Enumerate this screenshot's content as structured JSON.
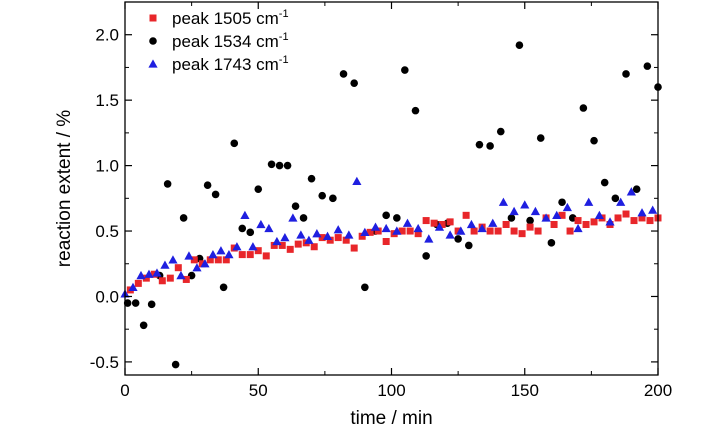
{
  "chart_data": {
    "type": "scatter",
    "xlabel": "time / min",
    "ylabel": "reaction extent / %",
    "xlim": [
      0,
      200
    ],
    "ylim": [
      -0.6,
      2.25
    ],
    "x_ticks": [
      0,
      50,
      100,
      150,
      200
    ],
    "y_ticks": [
      -0.5,
      0.0,
      0.5,
      1.0,
      1.5,
      2.0
    ],
    "x_tick_labels": [
      "0",
      "50",
      "100",
      "150",
      "200"
    ],
    "y_tick_labels": [
      "-0.5",
      "0.0",
      "0.5",
      "1.0",
      "1.5",
      "2.0"
    ],
    "grid": false,
    "legend_position": "top-left",
    "series": [
      {
        "name": "peak 1505 cm-1",
        "label_main": "peak 1505 cm",
        "label_sup": "-1",
        "marker": "square",
        "color": "#e8262a",
        "points": [
          [
            2,
            0.05
          ],
          [
            5,
            0.1
          ],
          [
            8,
            0.14
          ],
          [
            11,
            0.17
          ],
          [
            14,
            0.12
          ],
          [
            17,
            0.14
          ],
          [
            20,
            0.22
          ],
          [
            23,
            0.13
          ],
          [
            26,
            0.28
          ],
          [
            29,
            0.25
          ],
          [
            32,
            0.28
          ],
          [
            35,
            0.28
          ],
          [
            38,
            0.28
          ],
          [
            41,
            0.37
          ],
          [
            44,
            0.32
          ],
          [
            47,
            0.32
          ],
          [
            50,
            0.35
          ],
          [
            53,
            0.31
          ],
          [
            56,
            0.39
          ],
          [
            59,
            0.39
          ],
          [
            62,
            0.36
          ],
          [
            65,
            0.4
          ],
          [
            68,
            0.41
          ],
          [
            71,
            0.38
          ],
          [
            74,
            0.45
          ],
          [
            77,
            0.43
          ],
          [
            80,
            0.45
          ],
          [
            83,
            0.43
          ],
          [
            86,
            0.37
          ],
          [
            89,
            0.46
          ],
          [
            92,
            0.49
          ],
          [
            95,
            0.5
          ],
          [
            98,
            0.42
          ],
          [
            101,
            0.48
          ],
          [
            104,
            0.5
          ],
          [
            107,
            0.5
          ],
          [
            110,
            0.48
          ],
          [
            113,
            0.58
          ],
          [
            116,
            0.56
          ],
          [
            119,
            0.55
          ],
          [
            122,
            0.57
          ],
          [
            125,
            0.5
          ],
          [
            128,
            0.62
          ],
          [
            131,
            0.5
          ],
          [
            134,
            0.53
          ],
          [
            137,
            0.5
          ],
          [
            140,
            0.5
          ],
          [
            143,
            0.55
          ],
          [
            146,
            0.5
          ],
          [
            149,
            0.48
          ],
          [
            152,
            0.53
          ],
          [
            155,
            0.5
          ],
          [
            158,
            0.6
          ],
          [
            161,
            0.55
          ],
          [
            164,
            0.62
          ],
          [
            167,
            0.5
          ],
          [
            170,
            0.58
          ],
          [
            173,
            0.55
          ],
          [
            176,
            0.57
          ],
          [
            179,
            0.6
          ],
          [
            182,
            0.55
          ],
          [
            185,
            0.6
          ],
          [
            188,
            0.63
          ],
          [
            191,
            0.58
          ],
          [
            194,
            0.6
          ],
          [
            197,
            0.58
          ],
          [
            200,
            0.6
          ]
        ]
      },
      {
        "name": "peak 1534 cm-1",
        "label_main": "peak 1534 cm",
        "label_sup": "-1",
        "marker": "circle",
        "color": "#000000",
        "points": [
          [
            1,
            -0.05
          ],
          [
            4,
            -0.05
          ],
          [
            7,
            -0.22
          ],
          [
            10,
            -0.06
          ],
          [
            13,
            0.16
          ],
          [
            16,
            0.86
          ],
          [
            19,
            -0.52
          ],
          [
            22,
            0.6
          ],
          [
            25,
            0.16
          ],
          [
            28,
            0.29
          ],
          [
            31,
            0.85
          ],
          [
            34,
            0.78
          ],
          [
            37,
            0.07
          ],
          [
            41,
            1.17
          ],
          [
            44,
            0.52
          ],
          [
            47,
            0.49
          ],
          [
            50,
            0.82
          ],
          [
            55,
            1.01
          ],
          [
            58,
            1.0
          ],
          [
            61,
            1.0
          ],
          [
            64,
            0.69
          ],
          [
            67,
            0.6
          ],
          [
            70,
            0.9
          ],
          [
            74,
            0.77
          ],
          [
            78,
            0.75
          ],
          [
            82,
            1.7
          ],
          [
            86,
            1.63
          ],
          [
            90,
            0.07
          ],
          [
            94,
            0.5
          ],
          [
            98,
            0.62
          ],
          [
            102,
            0.6
          ],
          [
            105,
            1.73
          ],
          [
            109,
            1.42
          ],
          [
            113,
            0.31
          ],
          [
            117,
            0.55
          ],
          [
            121,
            0.56
          ],
          [
            125,
            0.44
          ],
          [
            129,
            0.39
          ],
          [
            133,
            1.16
          ],
          [
            137,
            1.15
          ],
          [
            141,
            1.26
          ],
          [
            145,
            0.6
          ],
          [
            148,
            1.92
          ],
          [
            152,
            0.58
          ],
          [
            156,
            1.21
          ],
          [
            160,
            0.41
          ],
          [
            164,
            0.72
          ],
          [
            168,
            0.6
          ],
          [
            172,
            1.44
          ],
          [
            176,
            1.19
          ],
          [
            180,
            0.87
          ],
          [
            184,
            0.75
          ],
          [
            188,
            1.7
          ],
          [
            192,
            0.82
          ],
          [
            196,
            1.76
          ],
          [
            200,
            1.6
          ]
        ]
      },
      {
        "name": "peak 1743 cm-1",
        "label_main": "peak 1743 cm",
        "label_sup": "-1",
        "marker": "triangle",
        "color": "#1f1fe0",
        "points": [
          [
            0,
            0.02
          ],
          [
            3,
            0.07
          ],
          [
            6,
            0.16
          ],
          [
            9,
            0.17
          ],
          [
            12,
            0.18
          ],
          [
            15,
            0.24
          ],
          [
            18,
            0.28
          ],
          [
            21,
            0.16
          ],
          [
            24,
            0.31
          ],
          [
            27,
            0.22
          ],
          [
            30,
            0.25
          ],
          [
            33,
            0.32
          ],
          [
            36,
            0.35
          ],
          [
            39,
            0.32
          ],
          [
            42,
            0.38
          ],
          [
            45,
            0.62
          ],
          [
            48,
            0.38
          ],
          [
            51,
            0.55
          ],
          [
            54,
            0.52
          ],
          [
            57,
            0.42
          ],
          [
            60,
            0.45
          ],
          [
            63,
            0.6
          ],
          [
            66,
            0.47
          ],
          [
            69,
            0.43
          ],
          [
            72,
            0.48
          ],
          [
            76,
            0.46
          ],
          [
            80,
            0.51
          ],
          [
            84,
            0.47
          ],
          [
            87,
            0.88
          ],
          [
            90,
            0.49
          ],
          [
            94,
            0.53
          ],
          [
            98,
            0.52
          ],
          [
            102,
            0.5
          ],
          [
            106,
            0.56
          ],
          [
            110,
            0.52
          ],
          [
            114,
            0.44
          ],
          [
            118,
            0.53
          ],
          [
            122,
            0.47
          ],
          [
            126,
            0.5
          ],
          [
            130,
            0.55
          ],
          [
            134,
            0.52
          ],
          [
            138,
            0.56
          ],
          [
            142,
            0.72
          ],
          [
            146,
            0.65
          ],
          [
            150,
            0.7
          ],
          [
            154,
            0.65
          ],
          [
            158,
            0.6
          ],
          [
            162,
            0.62
          ],
          [
            166,
            0.68
          ],
          [
            170,
            0.52
          ],
          [
            174,
            0.72
          ],
          [
            178,
            0.62
          ],
          [
            182,
            0.57
          ],
          [
            186,
            0.72
          ],
          [
            190,
            0.8
          ],
          [
            194,
            0.64
          ],
          [
            198,
            0.66
          ]
        ]
      }
    ]
  }
}
